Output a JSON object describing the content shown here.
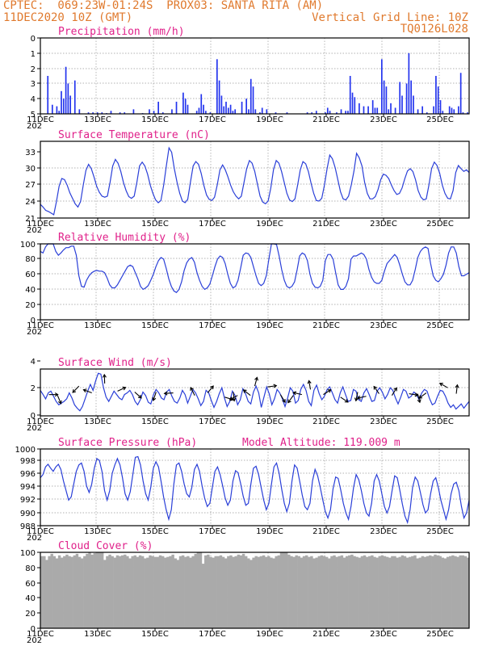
{
  "header": {
    "line1_left": "CPTEC:  069:23W-01:24S  PROX03: SANTA RITA (AM)",
    "line2_left": "11DEC2020 10Z (GMT)",
    "line2_right": "Vertical Grid Line: 10Z",
    "line3_right": "TQ0126L028"
  },
  "colors": {
    "header": "#e07a2e",
    "title": "#e0218a",
    "line": "#2a3fd8",
    "bar": "#2233ee",
    "cloud": "#aaaaaa",
    "grid": "#999999"
  },
  "x_labels": [
    "11DEC",
    "13DEC",
    "15DEC",
    "17DEC",
    "19DEC",
    "21DEC",
    "23DEC",
    "25DEC"
  ],
  "x_label_year": "202",
  "chart_data": [
    {
      "type": "bar",
      "title": "Precipitation (mm/h)",
      "ylim": [
        0,
        5
      ],
      "yticks": [
        "0",
        "1",
        "2",
        "3",
        "4",
        "5"
      ],
      "values": [
        0,
        0,
        0,
        2.5,
        0,
        0.6,
        0,
        0.5,
        0.2,
        1.5,
        1,
        3.1,
        2,
        1.2,
        0,
        2.2,
        0,
        0.3,
        0,
        0,
        0,
        0.1,
        0,
        0.1,
        0,
        0.1,
        0,
        0.1,
        0,
        0.05,
        0,
        0.2,
        0,
        0,
        0,
        0.1,
        0,
        0.1,
        0,
        0,
        0,
        0.3,
        0,
        0,
        0,
        0.05,
        0,
        0,
        0.3,
        0,
        0.2,
        0,
        0.8,
        0,
        0.1,
        0,
        0,
        0,
        0.3,
        0,
        0.8,
        0,
        0,
        1.4,
        1,
        0.6,
        0,
        0,
        0,
        0.2,
        0.4,
        1.3,
        0.6,
        0.2,
        0,
        0.1,
        0,
        0,
        3.6,
        2.2,
        1.2,
        0.5,
        0.8,
        0.4,
        0.6,
        0.2,
        0.3,
        0,
        0,
        0.8,
        0,
        1,
        0.3,
        2.3,
        1.8,
        0.3,
        0,
        0.1,
        0.4,
        0,
        0.3,
        0,
        0,
        0,
        0.1,
        0,
        0,
        0,
        0,
        0.1,
        0,
        0,
        0,
        0,
        0,
        0,
        0,
        0,
        0.1,
        0,
        0.1,
        0,
        0.2,
        0,
        0,
        0,
        0.1,
        0.4,
        0.2,
        0,
        0,
        0.1,
        0,
        0.3,
        0,
        0.2,
        0.2,
        2.5,
        1.4,
        1.1,
        0,
        0.7,
        0,
        0.5,
        0,
        0.5,
        0,
        0.9,
        0.4,
        0.4,
        0,
        3.6,
        2.2,
        1.8,
        0.3,
        0.7,
        0,
        0.4,
        0,
        2.1,
        1.2,
        0,
        2,
        4,
        2.2,
        1.2,
        0,
        0.3,
        0,
        0.5,
        0,
        0.1,
        0,
        0,
        0.5,
        2.5,
        1.8,
        0.9,
        0.2,
        0,
        0,
        0.5,
        0.4,
        0.3,
        0,
        0.5,
        2.7,
        0.1,
        0,
        0.1
      ],
      "xlabel": "",
      "ylabel": ""
    },
    {
      "type": "line",
      "title": "Surface Temperature (nC)",
      "ylim": [
        21,
        35
      ],
      "yticks": [
        "21",
        "24",
        "27",
        "30",
        "33"
      ],
      "values": [
        23.5,
        23,
        22.4,
        22.2,
        21.9,
        21.6,
        24,
        26.8,
        28.2,
        28,
        27,
        25.6,
        24.6,
        23.6,
        23,
        24,
        27,
        29.7,
        30.8,
        30,
        28.5,
        26.8,
        25.7,
        25,
        24.8,
        25,
        27.5,
        30.5,
        31.7,
        31,
        29.5,
        27.5,
        26,
        24.9,
        24.6,
        25,
        27.5,
        30.5,
        31.2,
        30.5,
        29,
        27,
        25.5,
        24.3,
        23.8,
        24.2,
        27,
        30.5,
        33.8,
        33,
        30,
        27.5,
        25.5,
        24.1,
        23.8,
        24.4,
        27.5,
        30.5,
        31.3,
        30.8,
        29.2,
        27,
        25.2,
        24.4,
        24.2,
        24.8,
        27,
        29.8,
        30.7,
        29.8,
        28.5,
        27,
        25.8,
        25,
        24.5,
        25,
        27.5,
        30,
        31.5,
        31,
        29.5,
        27.2,
        25,
        23.9,
        23.6,
        24.1,
        26.5,
        29.8,
        31.5,
        31,
        29.5,
        27.5,
        25.5,
        24.3,
        24,
        24.5,
        27,
        29.8,
        31.3,
        30.9,
        29.5,
        27.4,
        25.5,
        24.2,
        24.1,
        24.6,
        27,
        30,
        32.5,
        31.8,
        30.2,
        28,
        25.8,
        24.5,
        24.3,
        25,
        27,
        29.5,
        32.8,
        32,
        30.5,
        27.5,
        25.5,
        24.5,
        24.5,
        24.9,
        26.2,
        28,
        29,
        28.8,
        28.2,
        27,
        26,
        25.3,
        25.5,
        26.5,
        28.2,
        29.6,
        30,
        29.5,
        28,
        26,
        24.8,
        24.3,
        24.5,
        27,
        30,
        31.2,
        30.6,
        29.2,
        27,
        25.5,
        24.6,
        24.5,
        26,
        29.3,
        30.6,
        30,
        29.5,
        29.8,
        29.3
      ]
    },
    {
      "type": "line",
      "title": "Relative Humidity (%)",
      "ylim": [
        0,
        100
      ],
      "yticks": [
        "0",
        "20",
        "40",
        "60",
        "80",
        "100"
      ],
      "values": [
        90,
        88,
        96,
        100,
        100,
        100,
        90,
        85,
        88,
        92,
        95,
        95,
        97,
        97,
        85,
        58,
        44,
        43,
        52,
        58,
        62,
        64,
        65,
        64,
        64,
        62,
        55,
        46,
        42,
        42,
        46,
        52,
        58,
        64,
        70,
        72,
        70,
        62,
        54,
        44,
        40,
        42,
        45,
        52,
        60,
        70,
        78,
        82,
        80,
        68,
        54,
        44,
        38,
        36,
        40,
        50,
        65,
        75,
        80,
        82,
        76,
        62,
        52,
        44,
        40,
        42,
        47,
        58,
        70,
        80,
        84,
        82,
        74,
        60,
        48,
        42,
        44,
        52,
        68,
        85,
        88,
        87,
        82,
        70,
        58,
        48,
        45,
        48,
        58,
        80,
        100,
        100,
        99,
        84,
        66,
        52,
        44,
        42,
        44,
        50,
        66,
        84,
        88,
        86,
        78,
        60,
        48,
        43,
        42,
        44,
        52,
        78,
        86,
        86,
        80,
        62,
        46,
        40,
        40,
        44,
        54,
        80,
        84,
        84,
        86,
        88,
        86,
        80,
        66,
        56,
        50,
        48,
        48,
        52,
        64,
        74,
        78,
        82,
        86,
        82,
        72,
        60,
        50,
        46,
        46,
        52,
        66,
        82,
        90,
        94,
        96,
        94,
        74,
        58,
        52,
        50,
        54,
        60,
        72,
        88,
        96,
        96,
        88,
        70,
        58,
        58,
        60,
        62
      ]
    },
    {
      "type": "line",
      "title": "Surface Wind (m/s)",
      "ylim": [
        -0.5,
        5
      ],
      "yticks": [
        "0",
        "2",
        "4"
      ],
      "values": [
        2.5,
        2,
        1.5,
        2.2,
        2.4,
        1.8,
        1.2,
        0.8,
        1,
        1.2,
        1.5,
        2.2,
        1.6,
        0.8,
        0.4,
        0.1,
        0.6,
        1.5,
        2.4,
        3.2,
        2.5,
        3.6,
        4.5,
        4.4,
        2.8,
        1.7,
        1.2,
        1.8,
        2.4,
        2,
        1.6,
        1.4,
        2,
        2.2,
        2.5,
        2,
        1.2,
        0.8,
        1.4,
        2.3,
        1.9,
        1.1,
        0.9,
        2,
        2.6,
        2.2,
        1.6,
        1.4,
        2.3,
        2.6,
        1.8,
        1.2,
        1,
        1.6,
        2.5,
        2,
        1,
        1.8,
        2.6,
        2.2,
        1.5,
        0.7,
        1.2,
        2.5,
        2.2,
        1.3,
        0.5,
        1.2,
        2.1,
        2.8,
        1.6,
        0.6,
        1.2,
        2.4,
        1.9,
        0.8,
        1.4,
        2.7,
        2.1,
        1.2,
        0.9,
        2.3,
        3,
        2.2,
        0.5,
        1.7,
        2.9,
        2.1,
        0.8,
        1.5,
        2.6,
        2.2,
        1.5,
        0.6,
        1.6,
        2.8,
        2.4,
        1,
        1.3,
        2.6,
        3.2,
        2.5,
        1.2,
        0.7,
        2.5,
        3.1,
        2.1,
        1.4,
        1.8,
        2.6,
        2.9,
        2.2,
        1.4,
        1,
        2.2,
        2.9,
        2,
        1.2,
        1.3,
        2.6,
        2.4,
        1.4,
        1.2,
        2.2,
        2.7,
        2,
        1.2,
        1.3,
        2.4,
        2.8,
        2.3,
        1.5,
        2,
        2.8,
        2.5,
        1.6,
        0.9,
        1.7,
        2.6,
        2.4,
        1.6,
        1.8,
        2.3,
        2,
        1.4,
        2.2,
        2.6,
        2.4,
        1.5,
        0.8,
        1,
        1.8,
        2.5,
        2.4,
        1.8,
        1,
        0.5,
        0.8,
        0.3,
        0.6,
        0.9,
        0.4,
        0.8,
        1.2
      ],
      "arrows_xy": [
        [
          0.02,
          2
        ],
        [
          0.04,
          1.9
        ],
        [
          0.09,
          3
        ],
        [
          0.12,
          2.2
        ],
        [
          0.15,
          3.3
        ],
        [
          0.18,
          2.4
        ],
        [
          0.22,
          2.3
        ],
        [
          0.27,
          2.3
        ],
        [
          0.31,
          2.2
        ],
        [
          0.36,
          1.9
        ],
        [
          0.39,
          2.2
        ],
        [
          0.43,
          1.7
        ],
        [
          0.45,
          2.3
        ],
        [
          0.46,
          1.9
        ],
        [
          0.49,
          1.9
        ],
        [
          0.5,
          3
        ],
        [
          0.53,
          2.9
        ],
        [
          0.56,
          2
        ],
        [
          0.59,
          1.9
        ],
        [
          0.61,
          2
        ],
        [
          0.63,
          2.6
        ],
        [
          0.66,
          2
        ],
        [
          0.7,
          1.7
        ],
        [
          0.74,
          2.3
        ],
        [
          0.76,
          1.8
        ],
        [
          0.79,
          2.1
        ],
        [
          0.82,
          1.9
        ],
        [
          0.86,
          2.1
        ],
        [
          0.88,
          2.1
        ],
        [
          0.9,
          2.2
        ],
        [
          0.95,
          2.8
        ],
        [
          0.97,
          2.1
        ]
      ]
    },
    {
      "type": "line",
      "title": "Surface Pressure (hPa)",
      "annotation": "Model Altitude: 119.009 m",
      "ylim": [
        988,
        1000
      ],
      "yticks": [
        "988",
        "990",
        "992",
        "994",
        "996",
        "998",
        "1000"
      ],
      "values": [
        995.5,
        996,
        997.2,
        997.6,
        997,
        996.5,
        997.2,
        997.6,
        996.8,
        995,
        993.5,
        992,
        992.5,
        994.5,
        996.5,
        997.5,
        997.8,
        996.5,
        994.2,
        993.2,
        994.5,
        997,
        998.5,
        998.2,
        996.5,
        993.5,
        992,
        993.5,
        996.2,
        997.5,
        998.5,
        997.5,
        995.5,
        993,
        992,
        993.3,
        996,
        998.7,
        998.8,
        997.5,
        995,
        993,
        992,
        994,
        997,
        998,
        997.2,
        995,
        992.5,
        990.5,
        989,
        990.5,
        994.5,
        997.5,
        997.8,
        996.5,
        994.5,
        993,
        992.5,
        994,
        996.8,
        997.6,
        996.5,
        994.2,
        992.3,
        991,
        991.5,
        994,
        996.5,
        997.2,
        996,
        994.2,
        992.3,
        991.2,
        992,
        995,
        996.6,
        996.3,
        994.6,
        992.6,
        991.2,
        991.5,
        994.5,
        997,
        997.3,
        996,
        994,
        992,
        990.5,
        991.5,
        994.5,
        997.2,
        997.8,
        996.2,
        993.7,
        991.5,
        990.2,
        991.5,
        995,
        997.5,
        997,
        995,
        992.8,
        991,
        990.5,
        991.5,
        995,
        996.8,
        995.8,
        994,
        992,
        990.2,
        989.2,
        990.5,
        993.8,
        995.6,
        995.4,
        993.6,
        991.5,
        990,
        989,
        991,
        994,
        996,
        995.2,
        993.5,
        991.5,
        990,
        989.5,
        991.5,
        995,
        996,
        995,
        993,
        991,
        990,
        991,
        993.5,
        995.8,
        995.5,
        993.6,
        991.4,
        989.5,
        988.5,
        990.5,
        994,
        995.6,
        995,
        993.2,
        991.3,
        990,
        990.5,
        993,
        995,
        995.5,
        994,
        992,
        990.5,
        989,
        990.5,
        993,
        994.5,
        994.8,
        993.5,
        991,
        989.2,
        990,
        992
      ]
    },
    {
      "type": "bar",
      "title": "Cloud Cover (%)",
      "ylim": [
        0,
        100
      ],
      "yticks": [
        "0",
        "20",
        "40",
        "60",
        "80",
        "100"
      ],
      "values": [
        95,
        95,
        90,
        95,
        98,
        95,
        92,
        96,
        93,
        95,
        97,
        95,
        94,
        96,
        98,
        94,
        92,
        95,
        98,
        100,
        97,
        99,
        100,
        100,
        100,
        90,
        95,
        97,
        95,
        93,
        96,
        95,
        96,
        97,
        95,
        92,
        95,
        96,
        94,
        96,
        95,
        92,
        93,
        96,
        95,
        94,
        94,
        96,
        95,
        93,
        94,
        95,
        97,
        92,
        90,
        95,
        96,
        94,
        95,
        93,
        95,
        98,
        100,
        100,
        85,
        96,
        97,
        94,
        93,
        95,
        95,
        96,
        94,
        92,
        95,
        96,
        94,
        95,
        97,
        96,
        98,
        95,
        92,
        90,
        93,
        95,
        94,
        95,
        96,
        94,
        95,
        93,
        92,
        95,
        96,
        100,
        100,
        100,
        97,
        95,
        94,
        96,
        95,
        93,
        95,
        96,
        94,
        95,
        92,
        93,
        95,
        96,
        95,
        94,
        92,
        95,
        96,
        94,
        95,
        96,
        93,
        95,
        96,
        97,
        95,
        94,
        93,
        95,
        96,
        94,
        95,
        96,
        94,
        93,
        95,
        96,
        95,
        94,
        93,
        95,
        95,
        93,
        94,
        96,
        95,
        93,
        94,
        95,
        96,
        92,
        93,
        95,
        94,
        95,
        96,
        95,
        97,
        96,
        95,
        93,
        92,
        94,
        95,
        96,
        95,
        94,
        96,
        96,
        95,
        93
      ]
    }
  ]
}
